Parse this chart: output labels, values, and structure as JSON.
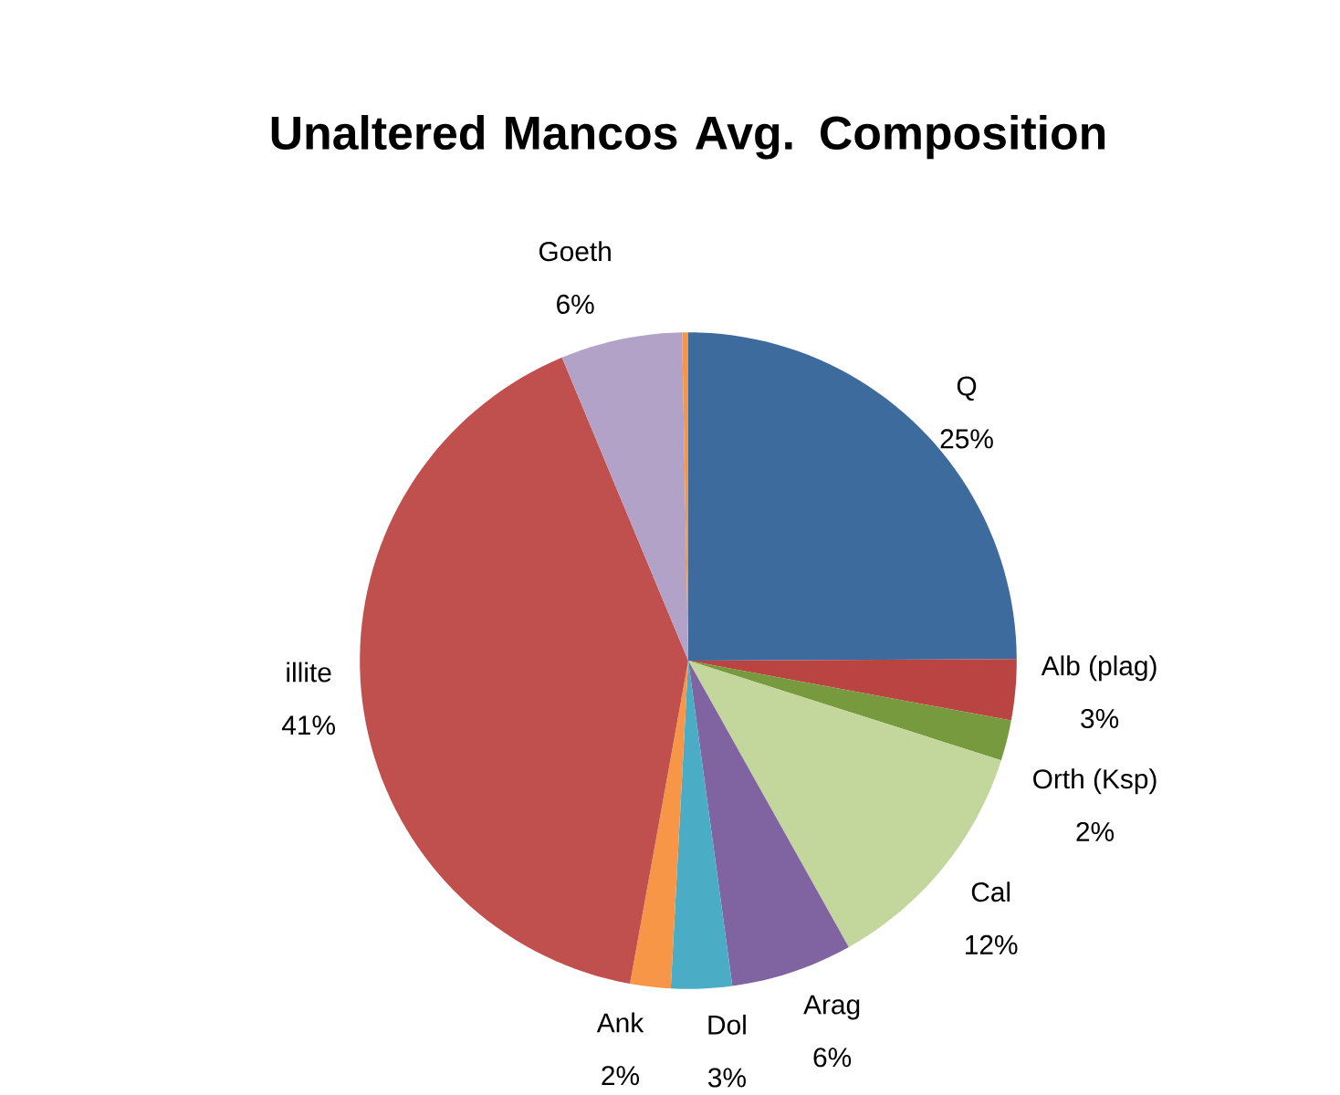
{
  "chart_data": {
    "type": "pie",
    "title": "Unaltered Mancos Avg. Composition",
    "categories": [
      "Q",
      "Alb (plag)",
      "Orth (Ksp)",
      "Cal",
      "Arag",
      "Dol",
      "Ank",
      "illite",
      "Goeth",
      null
    ],
    "values": [
      25,
      3,
      2,
      12,
      6,
      3,
      2,
      41,
      6,
      0.3
    ],
    "value_labels": [
      "25%",
      "3%",
      "2%",
      "12%",
      "6%",
      "3%",
      "2%",
      "41%",
      "6%",
      null
    ],
    "colors": [
      "#3d6b9e",
      "#b94441",
      "#779a3e",
      "#c3d69b",
      "#8064a2",
      "#4bacc6",
      "#f79646",
      "#c0504d",
      "#b3a2c7",
      "#f79646"
    ]
  }
}
